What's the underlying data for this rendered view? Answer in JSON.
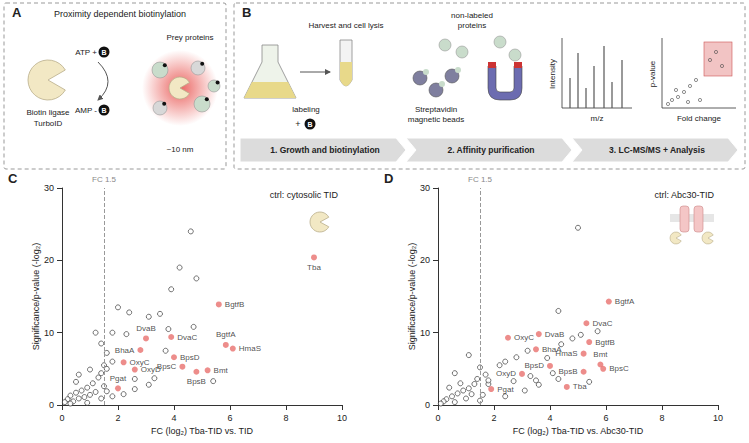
{
  "panels": {
    "A": {
      "letter": "A",
      "title": "Proximity dependent biotinylation",
      "enzyme": [
        "Biotin ligase",
        "TurboID"
      ],
      "reaction": [
        "ATP +",
        "AMP -"
      ],
      "biotin": "B",
      "prey": "Prey proteins",
      "radius": "~10 nm"
    },
    "B": {
      "letter": "B",
      "harvest": "Harvest and cell lysis",
      "labeling": "labeling",
      "plus": "+",
      "biotin": "B",
      "unlabeled": [
        "non-labeled",
        "proteins"
      ],
      "beads": [
        "Streptavidin",
        "magnetic beads"
      ],
      "spectrum_axes": [
        "Intensity",
        "m/z"
      ],
      "volcano_axes": [
        "p-value",
        "Fold change"
      ],
      "steps": [
        "1. Growth and biotinylation",
        "2. Affinity purification",
        "3. LC-MS/MS + Analysis"
      ]
    }
  },
  "chart_data": [
    {
      "panel": "C",
      "type": "scatter",
      "x_label": "FC (log₂) Tba-TID vs. TID",
      "y_label": "Significance/p-value (-log₂)",
      "xlim": [
        0,
        10
      ],
      "xticks": [
        0,
        2,
        4,
        6,
        8,
        10
      ],
      "ylim": [
        0,
        30
      ],
      "yticks": [
        0,
        10,
        20,
        30
      ],
      "grid": false,
      "annotations": [
        {
          "text": "FC 1.5",
          "x": 1.5
        },
        {
          "text": "ctrl: cytosolic TID"
        }
      ],
      "series": [
        {
          "color": "#222222",
          "marker": "open_circle",
          "x": [
            4.6,
            4.2,
            4.8,
            3.9,
            2.4,
            2.0,
            3.1,
            3.5,
            1.8,
            1.4,
            2.3,
            3.8,
            4.7,
            3.7,
            1.6,
            1.8,
            1.5,
            1.6,
            1.3,
            2.6,
            3.3,
            5.4,
            3.1,
            1.4,
            1.1,
            0.9,
            0.7,
            0.5,
            0.3,
            0.2,
            0.1,
            0.6,
            1.0,
            1.2,
            0.8,
            0.4,
            1.5,
            1.6,
            2.2,
            0.3,
            0.9,
            1.4,
            1.8,
            2.6,
            0.5,
            1.0,
            0.6,
            1.2
          ],
          "y": [
            24,
            19,
            17.5,
            16,
            12.8,
            13.5,
            12.2,
            12.6,
            10,
            8.5,
            9.8,
            10.5,
            10.8,
            7.5,
            7.2,
            6,
            5.5,
            5.0,
            3.8,
            3.6,
            3.7,
            3.3,
            2.8,
            4.4,
            3,
            2.4,
            2,
            1.7,
            1.3,
            0.8,
            0.4,
            0.9,
            1.4,
            1.8,
            1.1,
            0.5,
            2.6,
            1.9,
            1.5,
            0.2,
            0.3,
            0.9,
            1.2,
            2.2,
            3.2,
            4.9,
            4.2,
            10
          ]
        },
        {
          "color": "#e8706e",
          "marker": "filled_circle",
          "labels": [
            "Tba",
            "BgtfB",
            "BgtfA",
            "HmaS",
            "Bmt",
            "BpsD",
            "BpsC",
            "BpsB",
            "DvaC",
            "DvaB",
            "BhaA",
            "OxyC",
            "OxyD",
            "Pgat"
          ],
          "x": [
            9.0,
            5.6,
            5.85,
            6.1,
            5.2,
            4.0,
            4.3,
            4.8,
            3.9,
            3.0,
            2.8,
            2.2,
            2.6,
            2.0
          ],
          "y": [
            20.4,
            13.9,
            8.3,
            7.8,
            4.8,
            6.6,
            5.3,
            4.6,
            9.4,
            9.2,
            7.6,
            5.9,
            4.9,
            2.3
          ]
        }
      ]
    },
    {
      "panel": "D",
      "type": "scatter",
      "x_label": "FC (log₂) Tba-TID vs. Abc30-TID",
      "y_label": "Significance/p-value (-log₂)",
      "xlim": [
        0,
        10
      ],
      "xticks": [
        0,
        2,
        4,
        6,
        8,
        10
      ],
      "ylim": [
        0,
        30
      ],
      "yticks": [
        0,
        10,
        20,
        30
      ],
      "grid": false,
      "annotations": [
        {
          "text": "FC 1.5",
          "x": 1.5
        },
        {
          "text": "ctrl: Abc30-TID"
        }
      ],
      "series": [
        {
          "color": "#222222",
          "marker": "open_circle",
          "x": [
            5.0,
            4.3,
            5.1,
            4.8,
            4.4,
            5.7,
            3.9,
            3.2,
            2.8,
            2.4,
            2.2,
            1.5,
            1.7,
            1.4,
            3.6,
            3.3,
            4.1,
            4.3,
            5.4,
            2.7,
            3.5,
            1.3,
            1.1,
            0.9,
            0.7,
            0.5,
            0.3,
            0.2,
            0.1,
            0.6,
            1.0,
            1.2,
            0.8,
            0.4,
            1.6,
            1.8,
            2.4,
            0.6,
            1.8,
            1.1,
            3.1,
            1.5
          ],
          "y": [
            24.5,
            13.0,
            9.7,
            9.2,
            8.4,
            10.2,
            6.5,
            7.5,
            6.6,
            6.0,
            5.5,
            5.2,
            4.2,
            3.6,
            2.8,
            4.0,
            4.4,
            3.6,
            3.2,
            3.3,
            3.4,
            2.9,
            2.3,
            2.0,
            1.6,
            1.2,
            0.8,
            0.5,
            0.2,
            0.4,
            0.9,
            1.5,
            3.0,
            2.4,
            1.4,
            2.9,
            1.2,
            4.4,
            3.4,
            6.9,
            2.0,
            0.6
          ]
        },
        {
          "color": "#e8706e",
          "marker": "filled_circle",
          "labels": [
            "BgtfA",
            "DvaC",
            "DvaB",
            "OxyC",
            "BhaA",
            "BgtfB",
            "HmaS",
            "Bmt",
            "BpsC",
            "BpsB",
            "BpsD",
            "OxyD",
            "Tba",
            "Pgat"
          ],
          "x": [
            6.1,
            5.3,
            3.6,
            2.5,
            3.5,
            5.4,
            5.2,
            5.8,
            5.9,
            5.2,
            4.0,
            3.0,
            4.6,
            1.9
          ],
          "y": [
            14.3,
            11.3,
            9.8,
            9.3,
            7.7,
            8.7,
            7.1,
            5.6,
            5.0,
            4.6,
            5.4,
            4.3,
            2.5,
            2.2
          ]
        }
      ]
    }
  ]
}
